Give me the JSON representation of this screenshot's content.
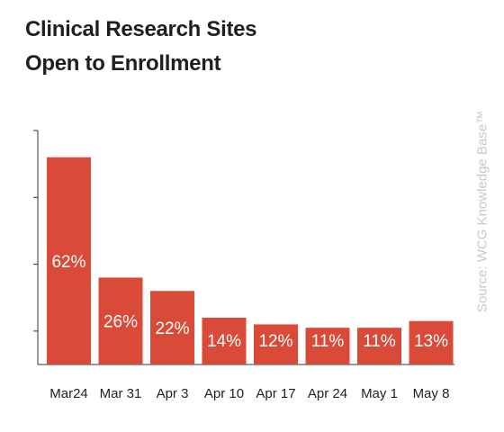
{
  "chart_data": {
    "type": "bar",
    "title": "Clinical Research Sites",
    "subtitle": "Open to Enrollment",
    "source": "Source: WCG Knowledge Base™",
    "categories": [
      "Mar24",
      "Mar 31",
      "Apr 3",
      "Apr 10",
      "Apr 17",
      "Apr 24",
      "May 1",
      "May 8"
    ],
    "values": [
      62,
      26,
      22,
      14,
      12,
      11,
      11,
      13
    ],
    "value_labels": [
      "62%",
      "26%",
      "22%",
      "14%",
      "12%",
      "11%",
      "11%",
      "13%"
    ],
    "ylim": [
      0,
      70
    ],
    "bar_color": "#d94a38",
    "grid": false
  }
}
